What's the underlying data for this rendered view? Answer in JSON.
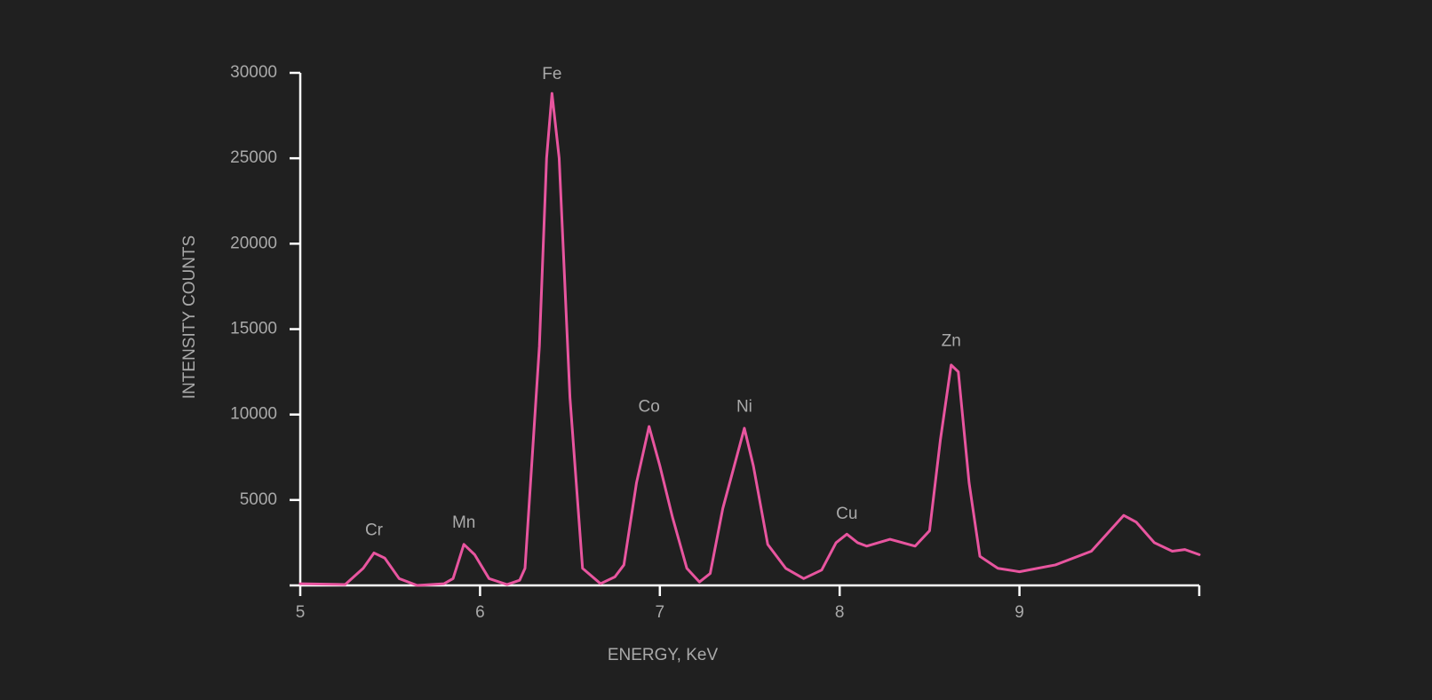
{
  "chart_data": {
    "type": "line",
    "xlabel": "ENERGY, KeV",
    "ylabel": "INTENSITY COUNTS",
    "xlim": [
      5,
      10
    ],
    "xticks": [
      5,
      6,
      7,
      8,
      9
    ],
    "ylim": [
      0,
      30000
    ],
    "yticks": [
      5000,
      10000,
      15000,
      20000,
      25000,
      30000
    ],
    "series": [
      {
        "color": "#e8559f",
        "x": [
          5.0,
          5.25,
          5.35,
          5.41,
          5.47,
          5.55,
          5.65,
          5.8,
          5.85,
          5.91,
          5.97,
          6.05,
          6.15,
          6.22,
          6.25,
          6.33,
          6.37,
          6.4,
          6.44,
          6.5,
          6.57,
          6.67,
          6.75,
          6.8,
          6.87,
          6.94,
          7.0,
          7.07,
          7.15,
          7.22,
          7.28,
          7.35,
          7.47,
          7.52,
          7.6,
          7.7,
          7.8,
          7.9,
          7.98,
          8.04,
          8.1,
          8.15,
          8.28,
          8.42,
          8.5,
          8.56,
          8.62,
          8.66,
          8.72,
          8.78,
          8.88,
          9.0,
          9.2,
          9.4,
          9.58,
          9.65,
          9.75,
          9.85,
          9.92,
          10.0
        ],
        "values": [
          100,
          50,
          1000,
          1900,
          1600,
          400,
          0,
          100,
          400,
          2400,
          1800,
          400,
          50,
          300,
          1000,
          14000,
          25000,
          28800,
          25000,
          11000,
          1000,
          100,
          500,
          1200,
          6000,
          9300,
          7000,
          4000,
          1000,
          200,
          700,
          4500,
          9200,
          7000,
          2400,
          1000,
          400,
          900,
          2500,
          3000,
          2500,
          2300,
          2700,
          2300,
          3200,
          8500,
          12900,
          12500,
          6000,
          1700,
          1000,
          800,
          1200,
          2000,
          4100,
          3700,
          2500,
          2000,
          2100,
          1800
        ]
      }
    ],
    "annotations": [
      {
        "text": "Cr",
        "x": 5.41,
        "y": 3200
      },
      {
        "text": "Mn",
        "x": 5.91,
        "y": 3640
      },
      {
        "text": "Fe",
        "x": 6.4,
        "y": 29900
      },
      {
        "text": "Co",
        "x": 6.94,
        "y": 10430
      },
      {
        "text": "Ni",
        "x": 7.47,
        "y": 10430
      },
      {
        "text": "Cu",
        "x": 8.04,
        "y": 4170
      },
      {
        "text": "Zn",
        "x": 8.62,
        "y": 14280
      }
    ]
  }
}
